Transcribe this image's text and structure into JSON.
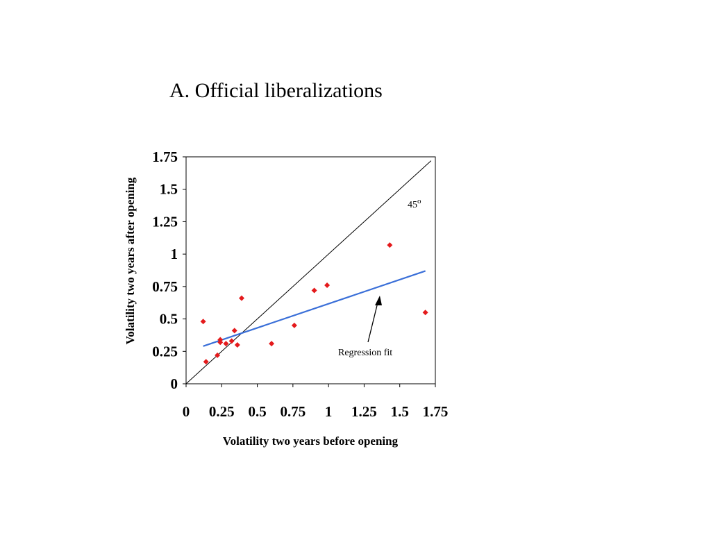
{
  "title": "A. Official liberalizations",
  "chart_data": {
    "type": "scatter",
    "xlabel": "Volatility two years before opening",
    "ylabel": "Volatility two years after opening",
    "xlim": [
      0,
      1.75
    ],
    "ylim": [
      0,
      1.75
    ],
    "xticks": [
      "0",
      "0.25",
      "0.5",
      "0.75",
      "1",
      "1.25",
      "1.5",
      "1.75"
    ],
    "yticks": [
      "0",
      "0.25",
      "0.5",
      "0.75",
      "1",
      "1.25",
      "1.5",
      "1.75"
    ],
    "tick_values": [
      0,
      0.25,
      0.5,
      0.75,
      1,
      1.25,
      1.5,
      1.75
    ],
    "grid": false,
    "points": [
      {
        "x": 0.12,
        "y": 0.48
      },
      {
        "x": 0.14,
        "y": 0.17
      },
      {
        "x": 0.22,
        "y": 0.22
      },
      {
        "x": 0.24,
        "y": 0.34
      },
      {
        "x": 0.24,
        "y": 0.32
      },
      {
        "x": 0.28,
        "y": 0.31
      },
      {
        "x": 0.32,
        "y": 0.33
      },
      {
        "x": 0.34,
        "y": 0.41
      },
      {
        "x": 0.36,
        "y": 0.3
      },
      {
        "x": 0.39,
        "y": 0.66
      },
      {
        "x": 0.6,
        "y": 0.31
      },
      {
        "x": 0.76,
        "y": 0.45
      },
      {
        "x": 0.9,
        "y": 0.72
      },
      {
        "x": 0.99,
        "y": 0.76
      },
      {
        "x": 1.43,
        "y": 1.07
      },
      {
        "x": 1.68,
        "y": 0.55
      }
    ],
    "regression_line": {
      "x": [
        0.12,
        1.68
      ],
      "y": [
        0.29,
        0.87
      ]
    },
    "diagonal_line": {
      "x": [
        0,
        1.72
      ],
      "y": [
        0,
        1.72
      ]
    },
    "annotations": {
      "degree_label": "45",
      "degree_symbol": "o",
      "regression_label": "Regression fit"
    },
    "colors": {
      "points": "#e41a1c",
      "regression": "#3a6fd8",
      "diagonal": "#000000",
      "axes": "#000000"
    }
  }
}
